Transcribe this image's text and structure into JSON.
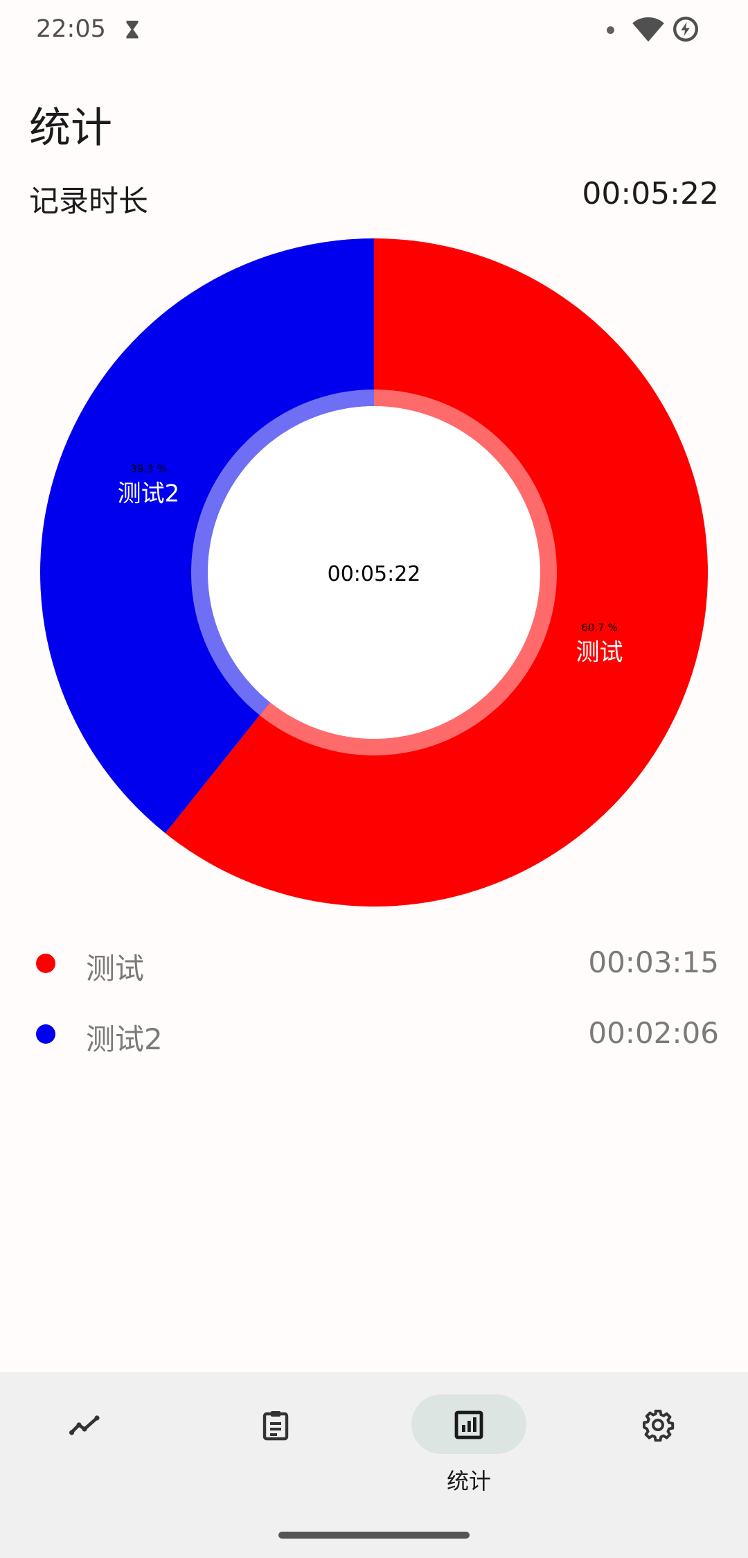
{
  "status_bar": {
    "time": "22:05"
  },
  "header": {
    "title": "统计"
  },
  "summary": {
    "label": "记录时长",
    "value": "00:05:22"
  },
  "chart_data": {
    "type": "pie",
    "center_label": "00:05:22",
    "series": [
      {
        "name": "测试",
        "value": 195,
        "percent_label": "60.7 %",
        "color": "#ff0000",
        "light_color": "#ff6b6b"
      },
      {
        "name": "测试2",
        "value": 126,
        "percent_label": "39.3 %",
        "color": "#0000ee",
        "light_color": "#6f6ff5"
      }
    ]
  },
  "legend": [
    {
      "name": "测试",
      "value": "00:03:15",
      "color": "#ff0000"
    },
    {
      "name": "测试2",
      "value": "00:02:06",
      "color": "#0000ee"
    }
  ],
  "bottom_nav": {
    "items": [
      {
        "icon": "trend-icon",
        "label": ""
      },
      {
        "icon": "clipboard-icon",
        "label": ""
      },
      {
        "icon": "stats-icon",
        "label": "统计",
        "active": true
      },
      {
        "icon": "gear-icon",
        "label": ""
      }
    ]
  }
}
